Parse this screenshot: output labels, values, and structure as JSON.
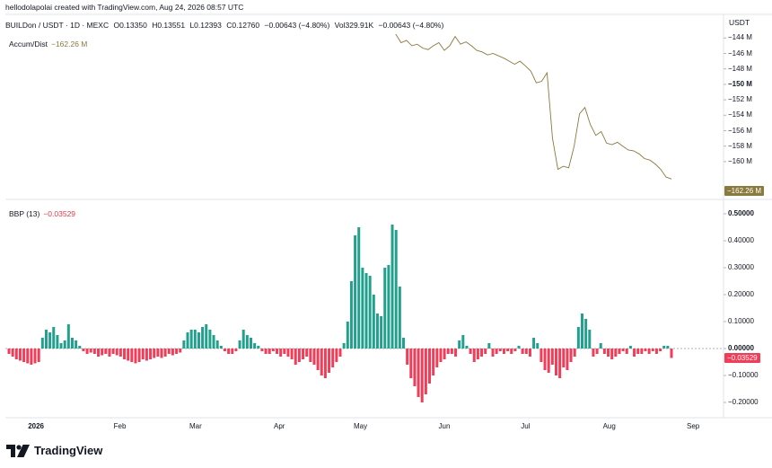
{
  "header": {
    "text": "hellodolapolai created with TradingView.com, Aug 24, 2026 08:57 UTC"
  },
  "symbol": {
    "pair": "BUILDon / USDT · 1D · MEXC",
    "open": "O0.13350",
    "high": "H0.13551",
    "low": "L0.12393",
    "close": "C0.12760",
    "change": "−0.00643 (−4.80%)",
    "volume": "Vol329.91K",
    "vol_change": "−0.00643 (−4.80%)"
  },
  "currency": "USDT",
  "indicators": {
    "ad": {
      "name": "Accum/Dist",
      "value": "−162.26 M",
      "badge": "−162.26 M",
      "color": "#8a7a3e"
    },
    "bbp": {
      "name": "BBP (13)",
      "value": "−0.03529",
      "badge": "−0.03529",
      "pos_color": "#22a08e",
      "neg_color": "#f23d59"
    }
  },
  "brand": {
    "name": "TradingView"
  },
  "chart_data": [
    {
      "type": "line",
      "title": "Accum/Dist",
      "y_axis_labels": [
        "−144 M",
        "−146 M",
        "−148 M",
        "−150 M",
        "−152 M",
        "−154 M",
        "−156 M",
        "−158 M",
        "−160 M"
      ],
      "ylim": [
        -163.5,
        -143.5
      ],
      "x": [
        "2026-05-14",
        "2026-05-16",
        "2026-05-18",
        "2026-05-20",
        "2026-05-22",
        "2026-05-24",
        "2026-05-26",
        "2026-05-28",
        "2026-05-30",
        "2026-06-01",
        "2026-06-03",
        "2026-06-05",
        "2026-06-07",
        "2026-06-09",
        "2026-06-11",
        "2026-06-13",
        "2026-06-15",
        "2026-06-17",
        "2026-06-19",
        "2026-06-21",
        "2026-06-23",
        "2026-06-25",
        "2026-06-27",
        "2026-06-29",
        "2026-07-01",
        "2026-07-03",
        "2026-07-05",
        "2026-07-07",
        "2026-07-09",
        "2026-07-11",
        "2026-07-13",
        "2026-07-15",
        "2026-07-17",
        "2026-07-19",
        "2026-07-21",
        "2026-07-23",
        "2026-07-25",
        "2026-07-27",
        "2026-07-29",
        "2026-07-31",
        "2026-08-02",
        "2026-08-04",
        "2026-08-06",
        "2026-08-08",
        "2026-08-10",
        "2026-08-12",
        "2026-08-14",
        "2026-08-16",
        "2026-08-18",
        "2026-08-20",
        "2026-08-22",
        "2026-08-24"
      ],
      "values": [
        -143.5,
        -144.6,
        -144.3,
        -145.0,
        -144.8,
        -145.3,
        -145.5,
        -145.0,
        -144.6,
        -145.6,
        -145.0,
        -143.8,
        -144.8,
        -144.5,
        -145.0,
        -145.6,
        -145.8,
        -146.2,
        -146.0,
        -146.3,
        -146.6,
        -147.0,
        -147.4,
        -147.0,
        -147.6,
        -148.3,
        -149.8,
        -149.6,
        -148.5,
        -157.0,
        -161.0,
        -160.6,
        -160.8,
        -158.0,
        -153.8,
        -153.0,
        -155.2,
        -156.6,
        -156.1,
        -157.6,
        -157.8,
        -157.5,
        -158.0,
        -158.5,
        -158.6,
        -159.0,
        -159.6,
        -159.8,
        -160.3,
        -161.0,
        -162.0,
        -162.26
      ]
    },
    {
      "type": "bar",
      "title": "BBP (13)",
      "y_axis_labels": [
        "0.50000",
        "0.40000",
        "0.30000",
        "0.20000",
        "0.10000",
        "0.00000",
        "−0.10000",
        "−0.20000"
      ],
      "ylim": [
        -0.25,
        0.5
      ],
      "x_axis_labels": [
        "2026",
        "Feb",
        "Mar",
        "Apr",
        "May",
        "Jun",
        "Jul",
        "Aug",
        "Sep"
      ],
      "x_range": [
        "2025-12-22",
        "2026-08-24"
      ],
      "values": [
        -0.02,
        -0.03,
        -0.04,
        -0.045,
        -0.05,
        -0.055,
        -0.06,
        -0.055,
        -0.05,
        0.04,
        0.07,
        0.06,
        0.08,
        0.05,
        0.02,
        0.03,
        0.09,
        0.04,
        0.03,
        0.01,
        -0.01,
        -0.02,
        -0.015,
        -0.02,
        -0.03,
        -0.025,
        -0.02,
        -0.03,
        -0.02,
        -0.025,
        -0.03,
        -0.04,
        -0.045,
        -0.05,
        -0.055,
        -0.05,
        -0.04,
        -0.045,
        -0.04,
        -0.035,
        -0.03,
        -0.035,
        -0.03,
        -0.02,
        -0.025,
        -0.02,
        -0.015,
        0.03,
        0.06,
        0.07,
        0.07,
        0.06,
        0.08,
        0.09,
        0.07,
        0.05,
        0.03,
        0.01,
        -0.01,
        -0.02,
        -0.02,
        -0.01,
        0.03,
        0.07,
        0.05,
        0.04,
        0.02,
        0.01,
        -0.01,
        -0.02,
        -0.02,
        -0.01,
        -0.02,
        -0.03,
        -0.02,
        -0.03,
        -0.04,
        -0.06,
        -0.05,
        -0.04,
        -0.03,
        -0.05,
        -0.06,
        -0.08,
        -0.1,
        -0.11,
        -0.09,
        -0.07,
        -0.05,
        -0.03,
        0.02,
        0.1,
        0.25,
        0.42,
        0.45,
        0.3,
        0.28,
        0.27,
        0.2,
        0.13,
        0.12,
        0.3,
        0.31,
        0.46,
        0.44,
        0.23,
        0.04,
        -0.06,
        -0.11,
        -0.14,
        -0.18,
        -0.2,
        -0.17,
        -0.13,
        -0.1,
        -0.07,
        -0.05,
        -0.04,
        -0.02,
        -0.02,
        -0.03,
        0.03,
        0.05,
        0.01,
        -0.02,
        -0.05,
        -0.04,
        -0.03,
        -0.02,
        0.02,
        -0.03,
        -0.02,
        -0.01,
        -0.02,
        -0.01,
        -0.02,
        -0.01,
        0.01,
        -0.02,
        -0.02,
        -0.03,
        0.04,
        0.02,
        -0.05,
        -0.08,
        -0.09,
        -0.06,
        -0.1,
        -0.11,
        -0.07,
        -0.08,
        -0.05,
        -0.03,
        0.08,
        0.13,
        0.11,
        0.07,
        -0.03,
        -0.02,
        0.02,
        -0.02,
        -0.03,
        -0.04,
        -0.03,
        -0.02,
        -0.01,
        -0.02,
        0.01,
        -0.03,
        -0.02,
        -0.02,
        -0.01,
        -0.02,
        -0.01,
        -0.02,
        -0.01,
        0.01,
        0.01,
        -0.035
      ]
    }
  ]
}
